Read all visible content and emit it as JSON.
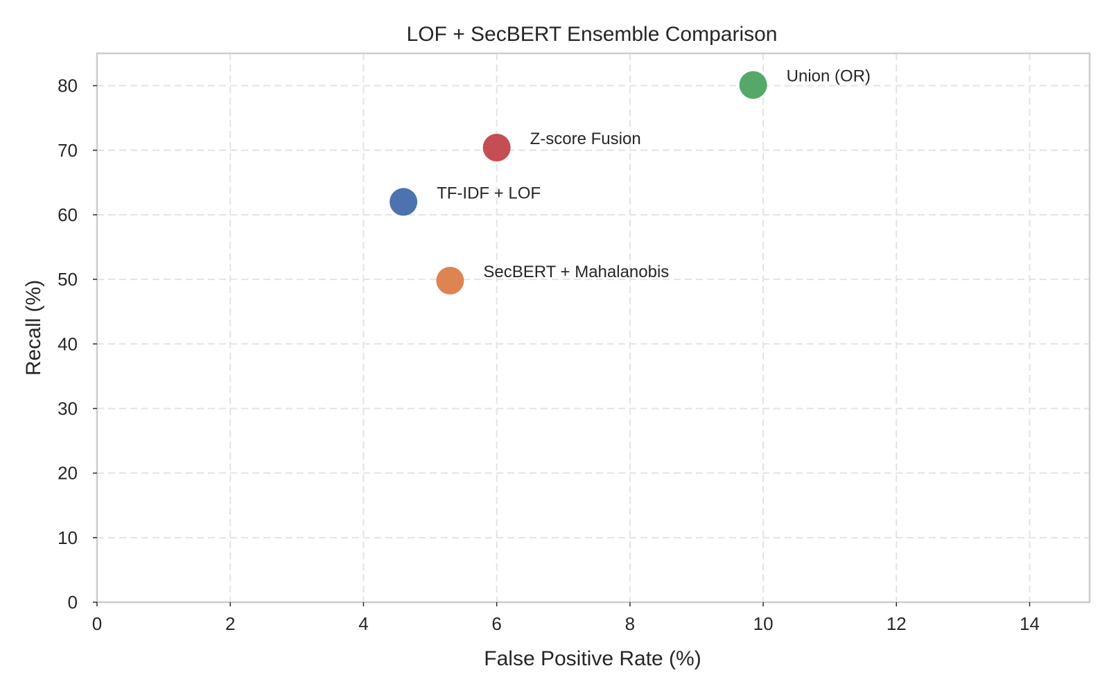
{
  "chart_data": {
    "type": "scatter",
    "title": "LOF + SecBERT Ensemble Comparison",
    "xlabel": "False Positive Rate (%)",
    "ylabel": "Recall (%)",
    "xlim": [
      0,
      14.9
    ],
    "ylim": [
      0,
      85
    ],
    "xticks": [
      0,
      2,
      4,
      6,
      8,
      10,
      12,
      14
    ],
    "yticks": [
      0,
      10,
      20,
      30,
      40,
      50,
      60,
      70,
      80
    ],
    "grid": true,
    "points": [
      {
        "label": "TF-IDF + LOF",
        "x": 4.6,
        "y": 62.0,
        "color": "#4c72b0"
      },
      {
        "label": "SecBERT + Mahalanobis",
        "x": 5.3,
        "y": 49.8,
        "color": "#dd8452"
      },
      {
        "label": "Z-score Fusion",
        "x": 6.0,
        "y": 70.4,
        "color": "#c44e52"
      },
      {
        "label": "Union (OR)",
        "x": 9.85,
        "y": 80.1,
        "color": "#55a868"
      }
    ]
  }
}
